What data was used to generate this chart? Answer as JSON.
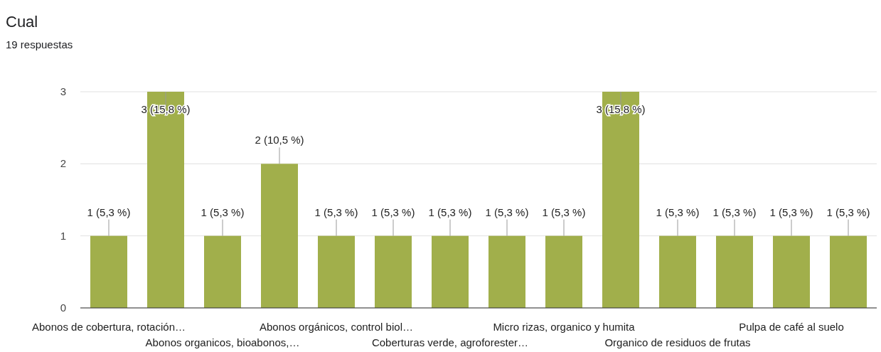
{
  "chart_data": {
    "type": "bar",
    "title": "Cual",
    "subtitle": "19 respuestas",
    "categories": [
      "Abonos de cobertura, rotación…",
      null,
      "Abonos organicos, bioabonos,…",
      null,
      "Abonos orgánicos, control biol…",
      null,
      "Coberturas verde, agroforester…",
      null,
      "Micro rizas, organico y humita",
      null,
      "Organico de residuos de frutas",
      null,
      "Pulpa de café al suelo",
      null
    ],
    "values": [
      1,
      3,
      1,
      2,
      1,
      1,
      1,
      1,
      1,
      3,
      1,
      1,
      1,
      1
    ],
    "value_labels": [
      "1 (5,3 %)",
      "3 (15,8 %)",
      "1 (5,3 %)",
      "2 (10,5 %)",
      "1 (5,3 %)",
      "1 (5,3 %)",
      "1 (5,3 %)",
      "1 (5,3 %)",
      "1 (5,3 %)",
      "3 (15,8 %)",
      "1 (5,3 %)",
      "1 (5,3 %)",
      "1 (5,3 %)",
      "1 (5,3 %)"
    ],
    "color": "#a1af4b",
    "ylim": [
      0,
      3
    ],
    "yticks": [
      0,
      1,
      2,
      3
    ],
    "grid": true
  }
}
